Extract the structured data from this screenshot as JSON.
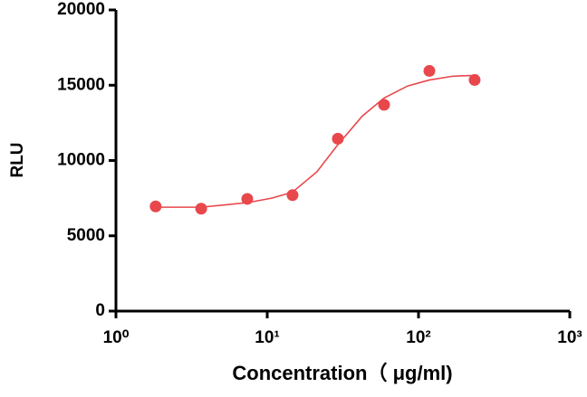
{
  "chart_data": {
    "type": "scatter",
    "xlabel": "Concentration（ μg/ml)",
    "ylabel": "RLU",
    "xscale": "log",
    "xlim": [
      1,
      1000
    ],
    "xticks": [
      {
        "value": 1,
        "label": "10⁰"
      },
      {
        "value": 10,
        "label": "10¹"
      },
      {
        "value": 100,
        "label": "10²"
      },
      {
        "value": 1000,
        "label": "10³"
      }
    ],
    "ylim": [
      0,
      20000
    ],
    "yticks": [
      0,
      5000,
      10000,
      15000,
      20000
    ],
    "series": [
      {
        "type": "scatter",
        "color": "#e8474c",
        "x": [
          1.83,
          3.66,
          7.38,
          14.7,
          29.3,
          59.2,
          118,
          235
        ],
        "values": [
          6950,
          6800,
          7450,
          7700,
          11450,
          13700,
          15950,
          15350
        ]
      },
      {
        "type": "line",
        "color": "#e8474c",
        "x": [
          1.83,
          3.66,
          7.38,
          10.7,
          14.7,
          21.3,
          29.3,
          42.5,
          59.2,
          84.7,
          118,
          169,
          235
        ],
        "values": [
          6900,
          6900,
          7200,
          7500,
          7900,
          9250,
          11050,
          12950,
          14150,
          14950,
          15350,
          15600,
          15650
        ]
      }
    ]
  }
}
